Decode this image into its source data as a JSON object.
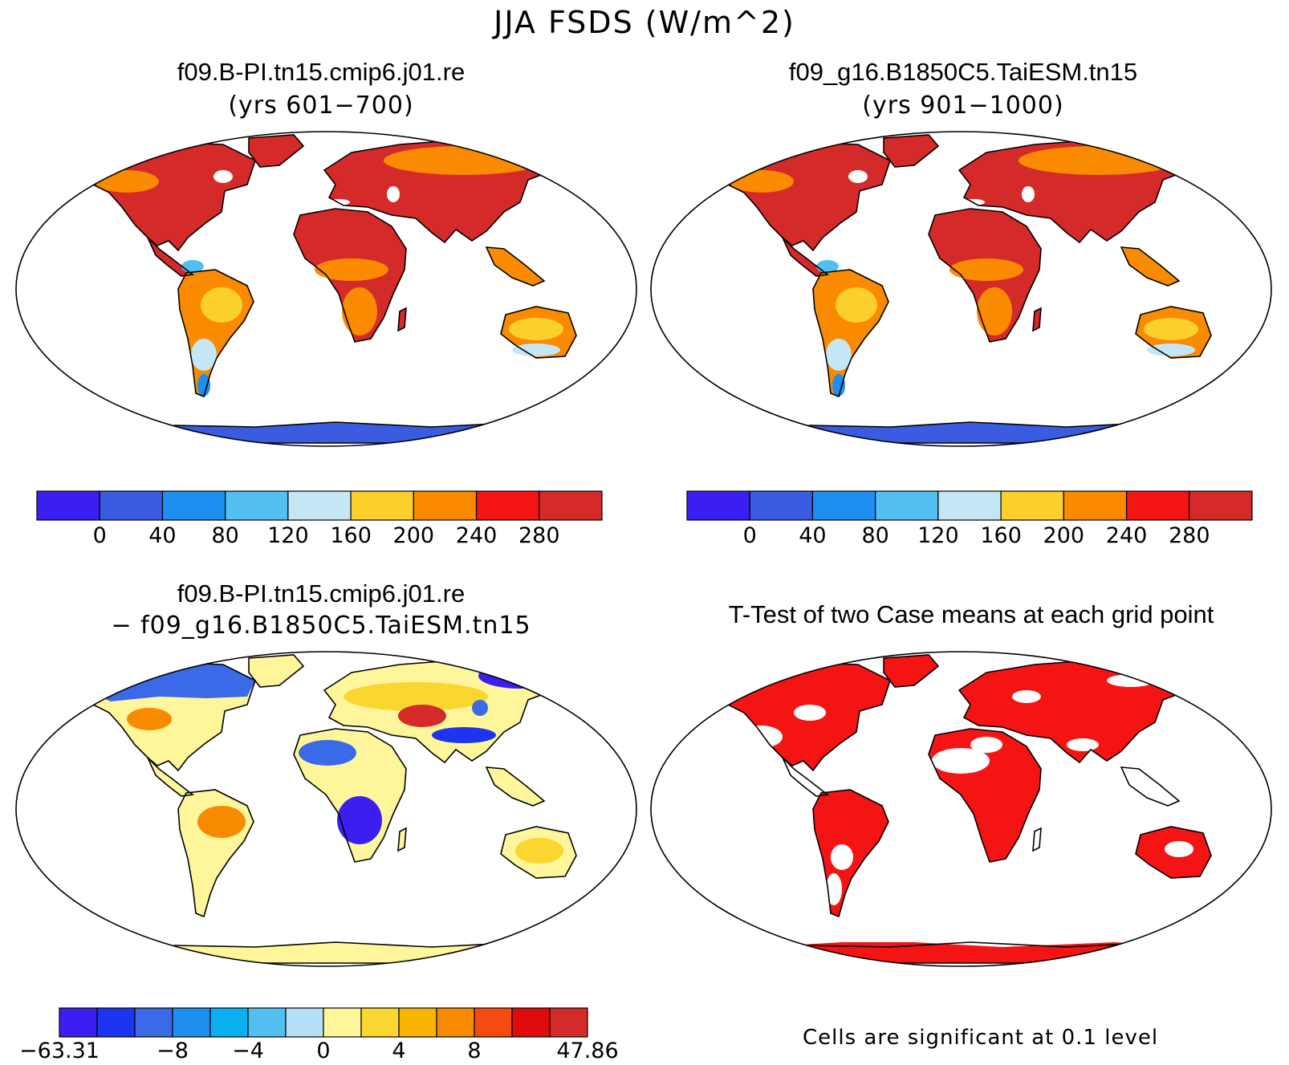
{
  "title": "JJA FSDS (W/m^2)",
  "panels": [
    {
      "title": "f09.B-PI.tn15.cmip6.j01.re",
      "subtitle": "(yrs 601−700)"
    },
    {
      "title": "f09_g16.B1850C5.TaiESM.tn15",
      "subtitle": "(yrs 901−1000)"
    },
    {
      "title": "f09.B-PI.tn15.cmip6.j01.re",
      "subtitle": "− f09_g16.B1850C5.TaiESM.tn15"
    },
    {
      "title": "T-Test of two Case means at each grid point",
      "subtitle": ""
    }
  ],
  "colorbars": {
    "absolute": {
      "colors": [
        "#3b1ff0",
        "#3a5ce0",
        "#1e8ef0",
        "#52bff0",
        "#c4e6f5",
        "#fbcf2c",
        "#fa8a00",
        "#f51414",
        "#d42a2a"
      ],
      "labels": [
        "0",
        "40",
        "80",
        "120",
        "160",
        "200",
        "240",
        "280"
      ]
    },
    "difference": {
      "colors": [
        "#3b1ff0",
        "#1d34f0",
        "#3a6ae8",
        "#1e8ef0",
        "#0ab0f0",
        "#52bff0",
        "#b4dff5",
        "#fff59a",
        "#fbd530",
        "#f8b400",
        "#f88a00",
        "#f54a10",
        "#e00b0b",
        "#d42a2a"
      ],
      "labels": [
        "−63.31",
        "−8",
        "−4",
        "0",
        "4",
        "8",
        "47.86"
      ],
      "label_positions": [
        0,
        3,
        5,
        7,
        9,
        11,
        14
      ]
    }
  },
  "note": "Cells are significant at 0.1 level",
  "map_fill": {
    "abs_land": "#d42a2a",
    "abs_mid": "#fa8a00",
    "abs_low": "#fbcf2c",
    "abs_ice": "#3a5ce0",
    "diff_base": "#fff59a",
    "diff_cold": "#3a6ae8",
    "diff_warm": "#f88a00",
    "signif": "#f51414"
  }
}
